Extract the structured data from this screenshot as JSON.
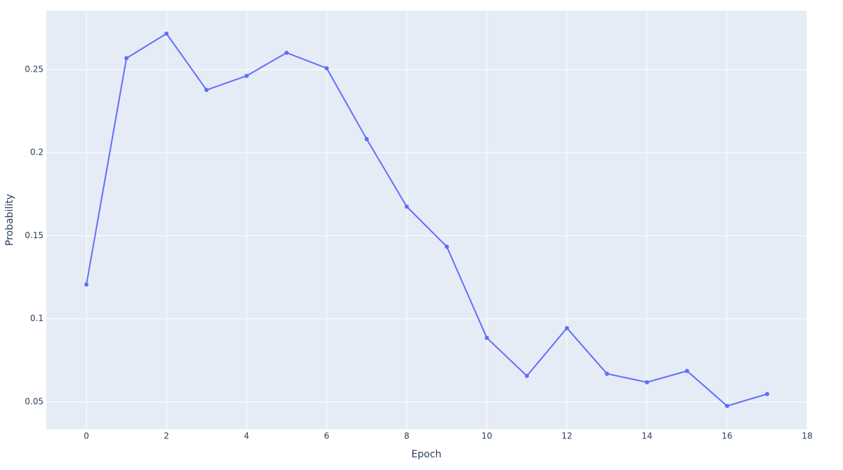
{
  "chart_data": {
    "type": "line",
    "x_label": "Epoch",
    "y_label": "Probability",
    "x": [
      0,
      1,
      2,
      3,
      4,
      5,
      6,
      7,
      8,
      9,
      10,
      11,
      12,
      13,
      14,
      15,
      16,
      17
    ],
    "series": [
      {
        "color": "#636efa",
        "values": [
          0.1206,
          0.2568,
          0.2716,
          0.2377,
          0.2462,
          0.2601,
          0.2508,
          0.2081,
          0.1675,
          0.1434,
          0.0885,
          0.0656,
          0.0944,
          0.0669,
          0.0618,
          0.0686,
          0.0475,
          0.0547
        ]
      }
    ],
    "xlim": [
      -1,
      18
    ],
    "ylim": [
      0.0335,
      0.2855
    ],
    "xticks": [
      0,
      2,
      4,
      6,
      8,
      10,
      12,
      14,
      16,
      18
    ],
    "yticks": [
      0.05,
      0.1,
      0.15,
      0.2,
      0.25
    ],
    "grid": true,
    "background": "#e5ecf6"
  }
}
